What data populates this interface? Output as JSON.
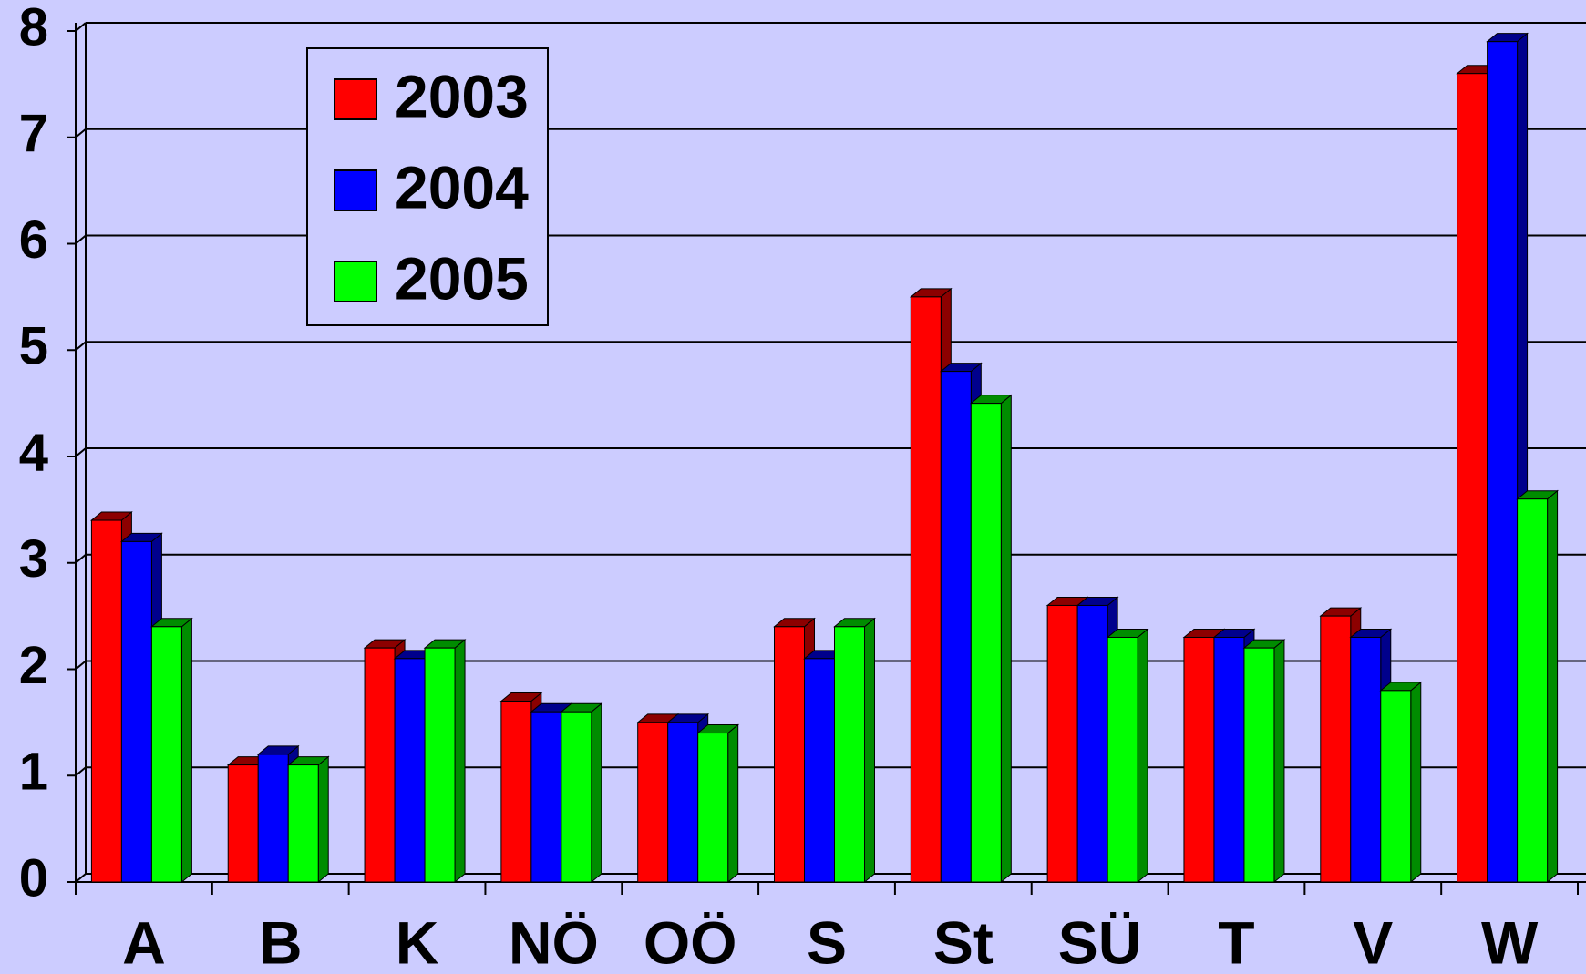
{
  "chart_data": {
    "type": "bar3d",
    "categories": [
      "A",
      "B",
      "K",
      "NÖ",
      "OÖ",
      "S",
      "St",
      "SÜ",
      "T",
      "V",
      "W"
    ],
    "series": [
      {
        "name": "2003",
        "color": "#ff0000",
        "values": [
          3.4,
          1.1,
          2.2,
          1.7,
          1.5,
          2.4,
          5.5,
          2.6,
          2.3,
          2.5,
          7.6
        ]
      },
      {
        "name": "2004",
        "color": "#0000ff",
        "values": [
          3.2,
          1.2,
          2.1,
          1.6,
          1.5,
          2.1,
          4.8,
          2.6,
          2.3,
          2.3,
          7.9
        ]
      },
      {
        "name": "2005",
        "color": "#00ff00",
        "values": [
          2.4,
          1.1,
          2.2,
          1.6,
          1.4,
          2.4,
          4.5,
          2.3,
          2.2,
          1.8,
          3.6
        ]
      }
    ],
    "ylim": [
      0,
      8
    ],
    "yticks": [
      0,
      1,
      2,
      3,
      4,
      5,
      6,
      7,
      8
    ],
    "grid": true,
    "legend": "top-left"
  }
}
